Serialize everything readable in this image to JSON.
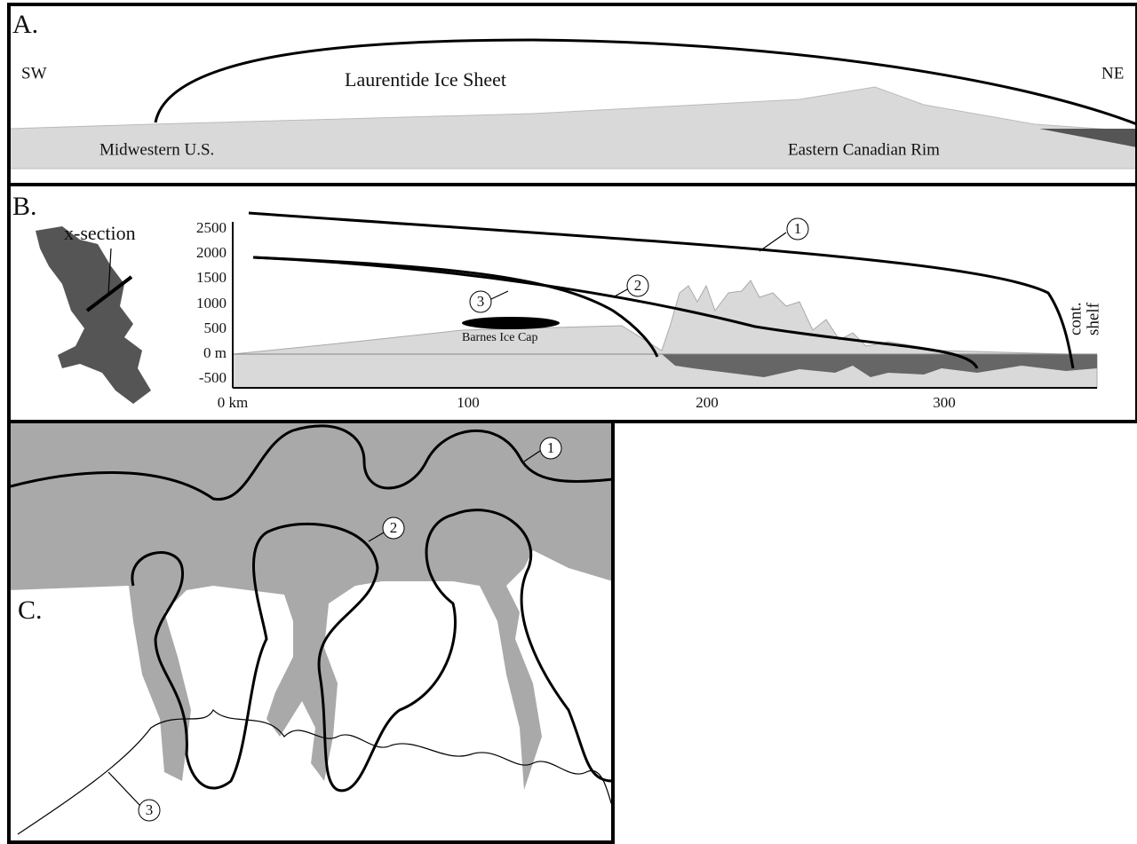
{
  "panels": {
    "a": {
      "label": "A.",
      "left": "SW",
      "right": "NE",
      "title": "Laurentide Ice Sheet",
      "labels": [
        "Midwestern U.S.",
        "Eastern Canadian Rim"
      ]
    },
    "b": {
      "label": "B.",
      "inset": "x-section",
      "yticks": [
        "2500",
        "2000",
        "1500",
        "1000",
        "500",
        "0 m",
        "-500"
      ],
      "xticks": [
        "0 km",
        "100",
        "200",
        "300"
      ],
      "cap": "Barnes Ice Cap",
      "shelf": [
        "cont.",
        "shelf"
      ],
      "markers": [
        "1",
        "2",
        "3"
      ]
    },
    "c": {
      "label": "C.",
      "markers": [
        "1",
        "2",
        "3"
      ]
    }
  }
}
